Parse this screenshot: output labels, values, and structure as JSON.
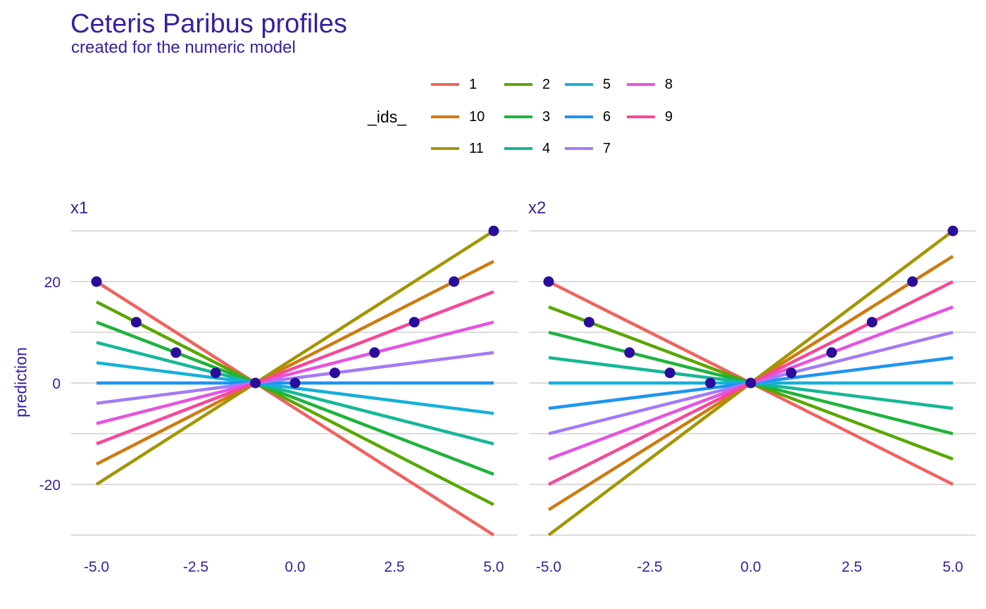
{
  "title": "Ceteris Paribus profiles",
  "subtitle": "created for the numeric model",
  "legend": {
    "title": "_ids_",
    "columns": [
      [
        {
          "id": "1",
          "color": "#f0635f"
        },
        {
          "id": "10",
          "color": "#cf7b0f"
        },
        {
          "id": "11",
          "color": "#a39600"
        }
      ],
      [
        {
          "id": "2",
          "color": "#5aa700"
        },
        {
          "id": "3",
          "color": "#1fb33d"
        },
        {
          "id": "4",
          "color": "#16b796"
        }
      ],
      [
        {
          "id": "5",
          "color": "#15b1d8"
        },
        {
          "id": "6",
          "color": "#1e94f2"
        },
        {
          "id": "7",
          "color": "#a37bf7"
        }
      ],
      [
        {
          "id": "8",
          "color": "#e752e2"
        },
        {
          "id": "9",
          "color": "#f8479a"
        }
      ]
    ]
  },
  "colors": {
    "text": "#371ea3",
    "point": "#2a0d9b",
    "grid": "#dcdcdc"
  },
  "chart_data": {
    "type": "line",
    "ylabel": "prediction",
    "xlim": [
      -5,
      5
    ],
    "ylim": [
      -30,
      30
    ],
    "x_ticks": [
      "-5.0",
      "-2.5",
      "0.0",
      "2.5",
      "5.0"
    ],
    "y_ticks": [
      "-20",
      "0",
      "20"
    ],
    "grid": true,
    "legend_position": "top",
    "facets": [
      {
        "label": "x1",
        "series": [
          {
            "name": "1",
            "x": [
              -5,
              5
            ],
            "y": [
              20,
              -30
            ]
          },
          {
            "name": "10",
            "x": [
              -5,
              5
            ],
            "y": [
              -16,
              24
            ]
          },
          {
            "name": "11",
            "x": [
              -5,
              5
            ],
            "y": [
              -20,
              30
            ]
          },
          {
            "name": "2",
            "x": [
              -5,
              5
            ],
            "y": [
              16,
              -24
            ]
          },
          {
            "name": "3",
            "x": [
              -5,
              5
            ],
            "y": [
              12,
              -18
            ]
          },
          {
            "name": "4",
            "x": [
              -5,
              5
            ],
            "y": [
              8,
              -12
            ]
          },
          {
            "name": "5",
            "x": [
              -5,
              5
            ],
            "y": [
              4,
              -6
            ]
          },
          {
            "name": "6",
            "x": [
              -5,
              5
            ],
            "y": [
              0,
              0
            ]
          },
          {
            "name": "7",
            "x": [
              -5,
              5
            ],
            "y": [
              -4,
              6
            ]
          },
          {
            "name": "8",
            "x": [
              -5,
              5
            ],
            "y": [
              -8,
              12
            ]
          },
          {
            "name": "9",
            "x": [
              -5,
              5
            ],
            "y": [
              -12,
              18
            ]
          }
        ],
        "points": [
          [
            -5,
            20
          ],
          [
            -4,
            12
          ],
          [
            -3,
            6
          ],
          [
            -2,
            2
          ],
          [
            -1,
            0
          ],
          [
            0,
            0
          ],
          [
            1,
            2
          ],
          [
            2,
            6
          ],
          [
            3,
            12
          ],
          [
            4,
            20
          ],
          [
            5,
            30
          ]
        ]
      },
      {
        "label": "x2",
        "series": [
          {
            "name": "1",
            "x": [
              -5,
              5
            ],
            "y": [
              20,
              -20
            ]
          },
          {
            "name": "10",
            "x": [
              -5,
              5
            ],
            "y": [
              -25,
              25
            ]
          },
          {
            "name": "11",
            "x": [
              -5,
              5
            ],
            "y": [
              -30,
              30
            ]
          },
          {
            "name": "2",
            "x": [
              -5,
              5
            ],
            "y": [
              15,
              -15
            ]
          },
          {
            "name": "3",
            "x": [
              -5,
              5
            ],
            "y": [
              10,
              -10
            ]
          },
          {
            "name": "4",
            "x": [
              -5,
              5
            ],
            "y": [
              5,
              -5
            ]
          },
          {
            "name": "5",
            "x": [
              -5,
              5
            ],
            "y": [
              0,
              0
            ]
          },
          {
            "name": "6",
            "x": [
              -5,
              5
            ],
            "y": [
              -5,
              5
            ]
          },
          {
            "name": "7",
            "x": [
              -5,
              5
            ],
            "y": [
              -10,
              10
            ]
          },
          {
            "name": "8",
            "x": [
              -5,
              5
            ],
            "y": [
              -15,
              15
            ]
          },
          {
            "name": "9",
            "x": [
              -5,
              5
            ],
            "y": [
              -20,
              20
            ]
          }
        ],
        "points": [
          [
            -5,
            20
          ],
          [
            -4,
            12
          ],
          [
            -3,
            6
          ],
          [
            -2,
            2
          ],
          [
            -1,
            0
          ],
          [
            0,
            0
          ],
          [
            1,
            2
          ],
          [
            2,
            6
          ],
          [
            3,
            12
          ],
          [
            4,
            20
          ],
          [
            5,
            30
          ]
        ]
      }
    ]
  }
}
